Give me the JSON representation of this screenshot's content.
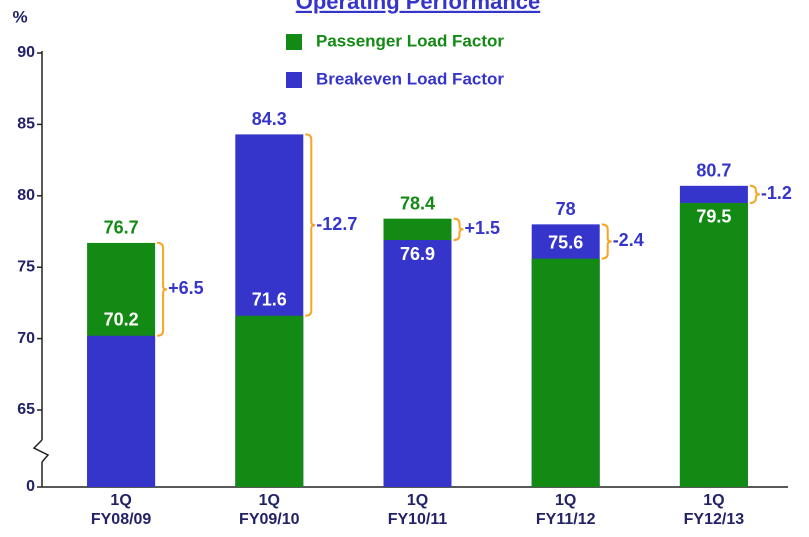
{
  "chart_data": {
    "type": "bar",
    "title": "Operating Performance",
    "y_label": "%",
    "categories": [
      [
        "1Q",
        "FY08/09"
      ],
      [
        "1Q",
        "FY09/10"
      ],
      [
        "1Q",
        "FY10/11"
      ],
      [
        "1Q",
        "FY11/12"
      ],
      [
        "1Q",
        "FY12/13"
      ]
    ],
    "series": [
      {
        "name": "Passenger Load Factor",
        "color": "#138a13",
        "values": [
          76.7,
          71.6,
          78.4,
          75.6,
          79.5
        ]
      },
      {
        "name": "Breakeven Load Factor",
        "color": "#3535cc",
        "values": [
          70.2,
          84.3,
          76.9,
          78.0,
          80.7
        ]
      }
    ],
    "annotations": [
      "+6.5",
      "-12.7",
      "+1.5",
      "-2.4",
      "-1.2"
    ],
    "ylim": [
      0,
      90
    ],
    "yticks": [
      0,
      65,
      70,
      75,
      80,
      85,
      90
    ],
    "axis_break": true,
    "grid": false
  }
}
